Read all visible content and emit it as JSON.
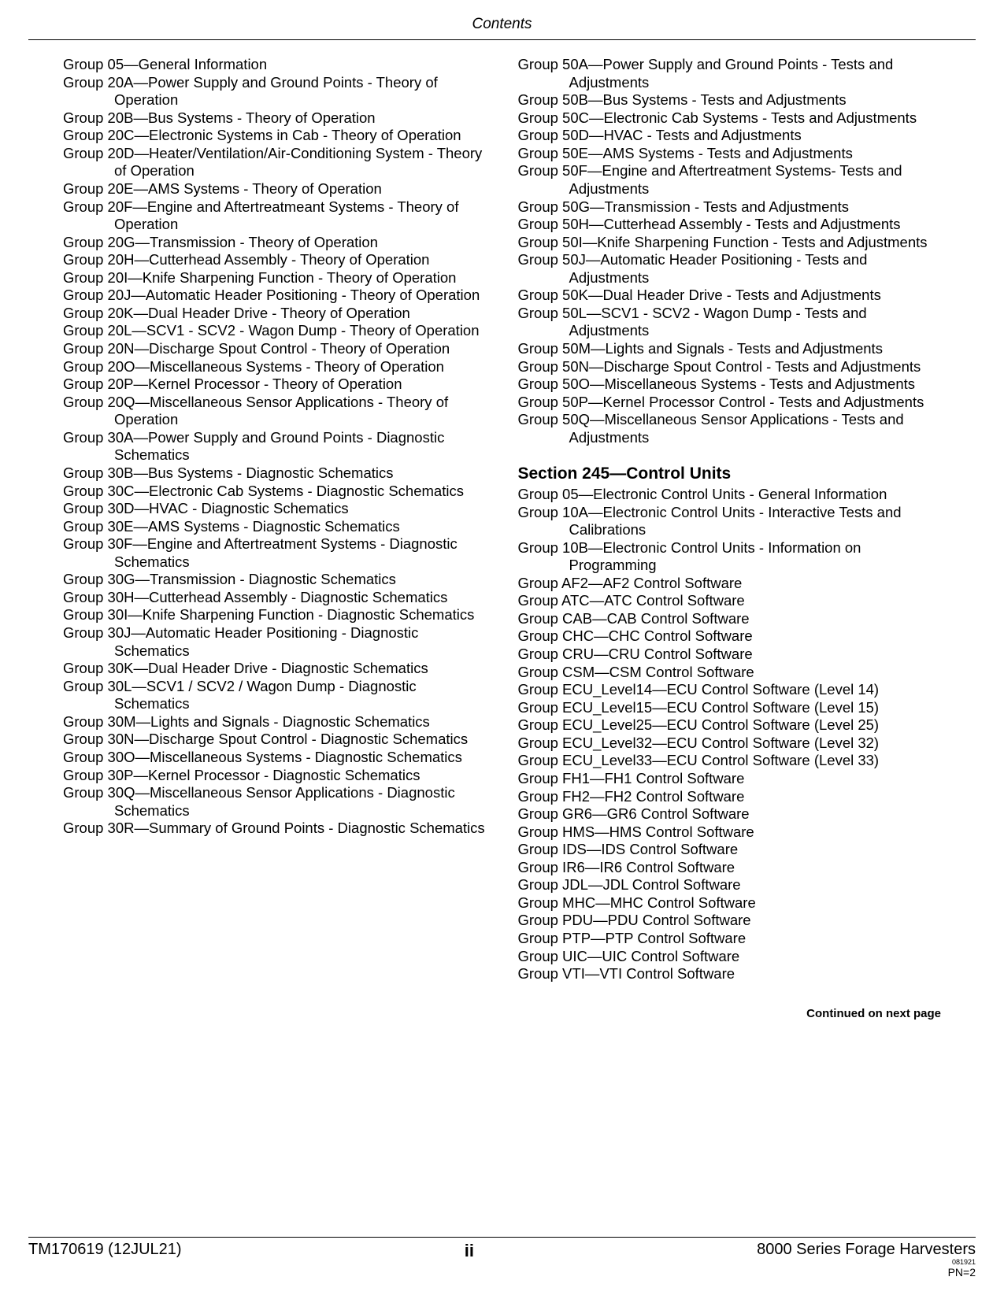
{
  "header": {
    "title": "Contents"
  },
  "leftColumn": [
    "Group 05—General Information",
    "Group 20A—Power Supply and Ground Points - Theory of Operation",
    "Group 20B—Bus Systems - Theory of Operation",
    "Group 20C—Electronic Systems in Cab - Theory of Operation",
    "Group 20D—Heater/Ventilation/Air-Conditioning System - Theory of Operation",
    "Group 20E—AMS Systems - Theory of Operation",
    "Group 20F—Engine and Aftertreatmeant Systems - Theory of Operation",
    "Group 20G—Transmission - Theory of Operation",
    "Group 20H—Cutterhead Assembly - Theory of Operation",
    "Group 20I—Knife Sharpening Function - Theory of Operation",
    "Group 20J—Automatic Header Positioning - Theory of Operation",
    "Group 20K—Dual Header Drive - Theory of Operation",
    "Group 20L—SCV1 - SCV2 - Wagon Dump - Theory of Operation",
    "Group 20N—Discharge Spout Control - Theory of Operation",
    "Group 20O—Miscellaneous Systems - Theory of Operation",
    "Group 20P—Kernel Processor - Theory of Operation",
    "Group 20Q—Miscellaneous Sensor Applications - Theory of Operation",
    "Group 30A—Power Supply and Ground Points - Diagnostic Schematics",
    "Group 30B—Bus Systems - Diagnostic Schematics",
    "Group 30C—Electronic Cab Systems - Diagnostic Schematics",
    "Group 30D—HVAC - Diagnostic Schematics",
    "Group 30E—AMS Systems - Diagnostic Schematics",
    "Group 30F—Engine and Aftertreatment Systems - Diagnostic Schematics",
    "Group 30G—Transmission - Diagnostic Schematics",
    "Group 30H—Cutterhead Assembly - Diagnostic Schematics",
    "Group 30I—Knife Sharpening Function - Diagnostic Schematics",
    "Group 30J—Automatic Header Positioning - Diagnostic Schematics",
    "Group 30K—Dual Header Drive - Diagnostic Schematics",
    "Group 30L—SCV1 / SCV2 / Wagon Dump - Diagnostic Schematics",
    "Group 30M—Lights and Signals - Diagnostic Schematics",
    "Group 30N—Discharge Spout Control - Diagnostic Schematics",
    "Group 30O—Miscellaneous Systems - Diagnostic Schematics",
    "Group 30P—Kernel Processor - Diagnostic Schematics",
    "Group 30Q—Miscellaneous Sensor Applications - Diagnostic Schematics",
    "Group 30R—Summary of Ground Points - Diagnostic Schematics"
  ],
  "rightColumnTop": [
    "Group 50A—Power Supply and Ground Points - Tests and Adjustments",
    "Group 50B—Bus Systems - Tests and Adjustments",
    "Group 50C—Electronic Cab Systems - Tests and Adjustments",
    "Group 50D—HVAC - Tests and Adjustments",
    "Group 50E—AMS Systems - Tests and Adjustments",
    "Group 50F—Engine and Aftertreatment Systems- Tests and Adjustments",
    "Group 50G—Transmission - Tests and Adjustments",
    "Group 50H—Cutterhead Assembly - Tests and Adjustments",
    "Group 50I—Knife Sharpening Function - Tests and Adjustments",
    "Group 50J—Automatic Header Positioning - Tests and Adjustments",
    "Group 50K—Dual Header Drive - Tests and Adjustments",
    "Group 50L—SCV1 - SCV2 - Wagon Dump - Tests and Adjustments",
    "Group 50M—Lights and Signals - Tests and Adjustments",
    "Group 50N—Discharge Spout Control - Tests and Adjustments",
    "Group 50O—Miscellaneous Systems - Tests and Adjustments",
    "Group 50P—Kernel Processor Control - Tests and Adjustments",
    "Group 50Q—Miscellaneous Sensor Applications - Tests and Adjustments"
  ],
  "section245": {
    "title": "Section 245—Control Units",
    "items": [
      "Group 05—Electronic Control Units - General Information",
      "Group 10A—Electronic Control Units - Interactive Tests and Calibrations",
      "Group 10B—Electronic Control Units - Information on Programming",
      "Group AF2—AF2 Control Software",
      "Group ATC—ATC Control Software",
      "Group CAB—CAB Control Software",
      "Group CHC—CHC Control Software",
      "Group CRU—CRU Control Software",
      "Group CSM—CSM Control Software",
      "Group ECU_Level14—ECU Control Software (Level 14)",
      "Group ECU_Level15—ECU Control Software (Level 15)",
      "Group ECU_Level25—ECU Control Software (Level 25)",
      "Group ECU_Level32—ECU Control Software (Level 32)",
      "Group ECU_Level33—ECU Control Software (Level 33)",
      "Group FH1—FH1 Control Software",
      "Group FH2—FH2 Control Software",
      "Group GR6—GR6 Control Software",
      "Group HMS—HMS Control Software",
      "Group IDS—IDS Control Software",
      "Group IR6—IR6 Control Software",
      "Group JDL—JDL Control Software",
      "Group MHC—MHC Control Software",
      "Group PDU—PDU Control Software",
      "Group PTP—PTP Control Software",
      "Group UIC—UIC Control Software",
      "Group VTI—VTI Control Software"
    ]
  },
  "continued": "Continued on next page",
  "footer": {
    "left": "TM170619 (12JUL21)",
    "center": "ii",
    "right": "8000 Series Forage Harvesters",
    "tiny": "081921",
    "pn": "PN=2"
  }
}
